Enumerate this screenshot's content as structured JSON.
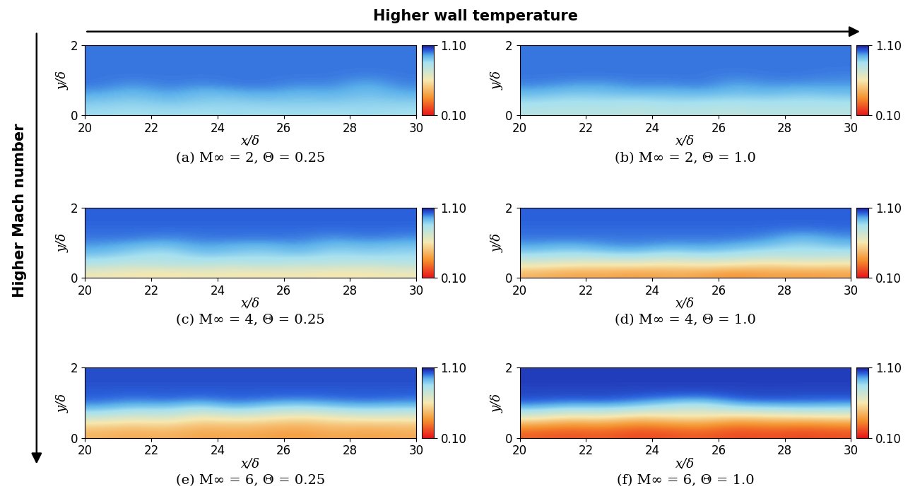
{
  "annotations": {
    "columns": "Higher wall temperature",
    "rows": "Higher Mach number"
  },
  "chart_data": [
    {
      "type": "heatmap",
      "title": "(a) M∞ = 2, Θ = 0.25",
      "x_label": "x/δ",
      "y_label": "y/δ",
      "xlim": [
        20,
        30
      ],
      "ylim": [
        0,
        2
      ],
      "xticks": [
        20,
        22,
        24,
        26,
        28,
        30
      ],
      "yticks": [
        0,
        2
      ],
      "grid": false,
      "cells": [
        [
          0.86,
          0.85,
          0.86,
          0.85,
          0.86,
          0.85,
          0.86,
          0.85,
          0.86,
          0.85
        ],
        [
          0.9,
          0.88,
          0.91,
          0.89,
          0.88,
          0.9,
          0.89,
          0.9,
          0.88,
          0.89
        ],
        [
          0.96,
          0.92,
          0.97,
          0.92,
          0.94,
          0.96,
          0.93,
          0.95,
          0.91,
          0.95
        ],
        [
          1.0,
          0.97,
          1.0,
          0.98,
          1.0,
          1.0,
          0.98,
          0.99,
          0.94,
          0.99
        ],
        [
          1.0,
          1.0,
          1.0,
          1.0,
          1.0,
          1.0,
          1.0,
          1.0,
          0.99,
          1.0
        ],
        [
          1.0,
          1.0,
          1.0,
          1.0,
          1.0,
          1.0,
          1.0,
          1.0,
          1.0,
          1.0
        ],
        [
          1.0,
          1.0,
          1.0,
          1.0,
          1.0,
          1.0,
          1.0,
          1.0,
          1.0,
          1.0
        ],
        [
          1.0,
          1.0,
          1.0,
          1.0,
          1.0,
          1.0,
          1.0,
          1.0,
          1.0,
          1.0
        ]
      ],
      "colorbar_range": [
        0.1,
        1.1
      ],
      "colorbar_ticks": [
        {
          "value": 0.1,
          "label": "0.10"
        },
        {
          "value": 1.1,
          "label": "1.10"
        }
      ]
    },
    {
      "type": "heatmap",
      "title": "(b) M∞ = 2, Θ = 1.0",
      "x_label": "x/δ",
      "y_label": "y/δ",
      "xlim": [
        20,
        30
      ],
      "ylim": [
        0,
        2
      ],
      "xticks": [
        20,
        22,
        24,
        26,
        28,
        30
      ],
      "yticks": [
        0,
        2
      ],
      "grid": false,
      "cells": [
        [
          0.8,
          0.79,
          0.8,
          0.78,
          0.8,
          0.79,
          0.78,
          0.8,
          0.79,
          0.79
        ],
        [
          0.86,
          0.84,
          0.85,
          0.83,
          0.86,
          0.85,
          0.84,
          0.85,
          0.84,
          0.85
        ],
        [
          0.93,
          0.9,
          0.91,
          0.93,
          0.92,
          0.94,
          0.91,
          0.93,
          0.9,
          0.92
        ],
        [
          0.99,
          0.97,
          0.96,
          0.99,
          0.98,
          1.0,
          0.95,
          0.98,
          0.97,
          0.97
        ],
        [
          1.0,
          1.0,
          1.0,
          1.0,
          1.0,
          1.0,
          0.99,
          1.0,
          1.0,
          0.99
        ],
        [
          1.0,
          1.0,
          1.0,
          1.0,
          1.0,
          1.0,
          1.0,
          1.0,
          1.0,
          1.0
        ],
        [
          1.0,
          1.0,
          1.0,
          1.0,
          1.0,
          1.0,
          1.0,
          1.0,
          1.0,
          1.0
        ],
        [
          1.0,
          1.0,
          1.0,
          1.0,
          1.0,
          1.0,
          1.0,
          1.0,
          1.0,
          1.0
        ]
      ],
      "colorbar_range": [
        0.1,
        1.1
      ],
      "colorbar_ticks": [
        {
          "value": 0.1,
          "label": "0.10"
        },
        {
          "value": 1.1,
          "label": "1.10"
        }
      ]
    },
    {
      "type": "heatmap",
      "title": "(c) M∞ = 4, Θ = 0.25",
      "x_label": "x/δ",
      "y_label": "y/δ",
      "xlim": [
        20,
        30
      ],
      "ylim": [
        0,
        2
      ],
      "xticks": [
        20,
        22,
        24,
        26,
        28,
        30
      ],
      "yticks": [
        0,
        2
      ],
      "grid": false,
      "cells": [
        [
          0.62,
          0.6,
          0.58,
          0.62,
          0.6,
          0.6,
          0.62,
          0.58,
          0.6,
          0.62
        ],
        [
          0.8,
          0.75,
          0.8,
          0.78,
          0.76,
          0.8,
          0.75,
          0.78,
          0.74,
          0.78
        ],
        [
          0.9,
          0.86,
          0.82,
          0.9,
          0.88,
          0.86,
          0.9,
          0.84,
          0.88,
          0.86
        ],
        [
          0.96,
          0.92,
          0.9,
          0.96,
          0.93,
          0.92,
          0.96,
          0.9,
          0.92,
          0.9
        ],
        [
          1.0,
          1.0,
          0.98,
          1.0,
          1.0,
          1.0,
          1.0,
          0.97,
          1.0,
          0.98
        ],
        [
          1.01,
          1.01,
          1.01,
          1.01,
          1.01,
          1.01,
          1.01,
          1.01,
          1.01,
          1.01
        ],
        [
          1.02,
          1.02,
          1.02,
          1.02,
          1.02,
          1.02,
          1.02,
          1.02,
          1.02,
          1.02
        ],
        [
          1.02,
          1.02,
          1.02,
          1.02,
          1.02,
          1.02,
          1.02,
          1.02,
          1.02,
          1.02
        ]
      ],
      "colorbar_range": [
        0.1,
        1.1
      ],
      "colorbar_ticks": [
        {
          "value": 0.1,
          "label": "0.10"
        },
        {
          "value": 1.1,
          "label": "1.10"
        }
      ]
    },
    {
      "type": "heatmap",
      "title": "(d) M∞ = 4, Θ = 1.0",
      "x_label": "x/δ",
      "y_label": "y/δ",
      "xlim": [
        20,
        30
      ],
      "ylim": [
        0,
        2
      ],
      "xticks": [
        20,
        22,
        24,
        26,
        28,
        30
      ],
      "yticks": [
        0,
        2
      ],
      "grid": false,
      "cells": [
        [
          0.45,
          0.4,
          0.42,
          0.38,
          0.42,
          0.4,
          0.35,
          0.4,
          0.38,
          0.4
        ],
        [
          0.65,
          0.62,
          0.6,
          0.62,
          0.58,
          0.62,
          0.6,
          0.55,
          0.6,
          0.58
        ],
        [
          0.85,
          0.82,
          0.84,
          0.86,
          0.8,
          0.85,
          0.82,
          0.78,
          0.8,
          0.78
        ],
        [
          0.95,
          0.92,
          0.96,
          0.98,
          0.94,
          0.96,
          0.93,
          0.9,
          0.85,
          0.9
        ],
        [
          1.0,
          1.0,
          1.0,
          1.0,
          1.0,
          1.0,
          1.0,
          0.98,
          0.92,
          0.97
        ],
        [
          1.01,
          1.01,
          1.01,
          1.01,
          1.01,
          1.01,
          1.01,
          1.01,
          1.0,
          1.01
        ],
        [
          1.02,
          1.02,
          1.02,
          1.02,
          1.02,
          1.02,
          1.02,
          1.02,
          1.02,
          1.02
        ],
        [
          1.02,
          1.02,
          1.02,
          1.02,
          1.02,
          1.02,
          1.02,
          1.02,
          1.02,
          1.02
        ]
      ],
      "colorbar_range": [
        0.1,
        1.1
      ],
      "colorbar_ticks": [
        {
          "value": 0.1,
          "label": "0.10"
        },
        {
          "value": 1.1,
          "label": "1.10"
        }
      ]
    },
    {
      "type": "heatmap",
      "title": "(e) M∞ = 6, Θ = 0.25",
      "x_label": "x/δ",
      "y_label": "y/δ",
      "xlim": [
        20,
        30
      ],
      "ylim": [
        0,
        2
      ],
      "xticks": [
        20,
        22,
        24,
        26,
        28,
        30
      ],
      "yticks": [
        0,
        2
      ],
      "grid": false,
      "cells": [
        [
          0.45,
          0.42,
          0.45,
          0.4,
          0.42,
          0.4,
          0.38,
          0.42,
          0.4,
          0.42
        ],
        [
          0.55,
          0.52,
          0.55,
          0.48,
          0.5,
          0.48,
          0.45,
          0.5,
          0.48,
          0.5
        ],
        [
          0.78,
          0.7,
          0.75,
          0.62,
          0.7,
          0.65,
          0.6,
          0.65,
          0.7,
          0.68
        ],
        [
          0.95,
          0.9,
          0.92,
          0.85,
          0.95,
          0.88,
          0.85,
          0.9,
          0.92,
          0.9
        ],
        [
          1.02,
          1.0,
          1.02,
          1.0,
          1.02,
          1.01,
          1.0,
          1.01,
          1.02,
          1.01
        ],
        [
          1.03,
          1.03,
          1.03,
          1.03,
          1.03,
          1.03,
          1.03,
          1.03,
          1.03,
          1.03
        ],
        [
          1.04,
          1.04,
          1.04,
          1.04,
          1.04,
          1.04,
          1.04,
          1.04,
          1.04,
          1.04
        ],
        [
          1.04,
          1.04,
          1.04,
          1.04,
          1.04,
          1.04,
          1.04,
          1.04,
          1.04,
          1.04
        ]
      ],
      "colorbar_range": [
        0.1,
        1.1
      ],
      "colorbar_ticks": [
        {
          "value": 0.1,
          "label": "0.10"
        },
        {
          "value": 1.1,
          "label": "1.10"
        }
      ]
    },
    {
      "type": "heatmap",
      "title": "(f) M∞ = 6, Θ = 1.0",
      "x_label": "x/δ",
      "y_label": "y/δ",
      "xlim": [
        20,
        30
      ],
      "ylim": [
        0,
        2
      ],
      "xticks": [
        20,
        22,
        24,
        26,
        28,
        30
      ],
      "yticks": [
        0,
        2
      ],
      "grid": false,
      "cells": [
        [
          0.25,
          0.22,
          0.25,
          0.2,
          0.22,
          0.25,
          0.2,
          0.22,
          0.2,
          0.22
        ],
        [
          0.4,
          0.35,
          0.38,
          0.32,
          0.35,
          0.38,
          0.3,
          0.35,
          0.32,
          0.35
        ],
        [
          0.7,
          0.6,
          0.65,
          0.55,
          0.6,
          0.62,
          0.55,
          0.58,
          0.6,
          0.62
        ],
        [
          0.95,
          0.9,
          0.92,
          0.88,
          0.8,
          0.75,
          0.88,
          0.9,
          0.92,
          0.9
        ],
        [
          1.04,
          1.03,
          1.04,
          1.02,
          1.0,
          0.98,
          1.03,
          1.04,
          1.03,
          1.03
        ],
        [
          1.05,
          1.05,
          1.05,
          1.05,
          1.05,
          1.05,
          1.05,
          1.05,
          1.05,
          1.05
        ],
        [
          1.06,
          1.06,
          1.06,
          1.06,
          1.06,
          1.06,
          1.06,
          1.06,
          1.06,
          1.06
        ],
        [
          1.06,
          1.06,
          1.06,
          1.06,
          1.06,
          1.06,
          1.06,
          1.06,
          1.06,
          1.06
        ]
      ],
      "colorbar_range": [
        0.1,
        1.1
      ],
      "colorbar_ticks": [
        {
          "value": 0.1,
          "label": "0.10"
        },
        {
          "value": 1.1,
          "label": "1.10"
        }
      ]
    }
  ]
}
